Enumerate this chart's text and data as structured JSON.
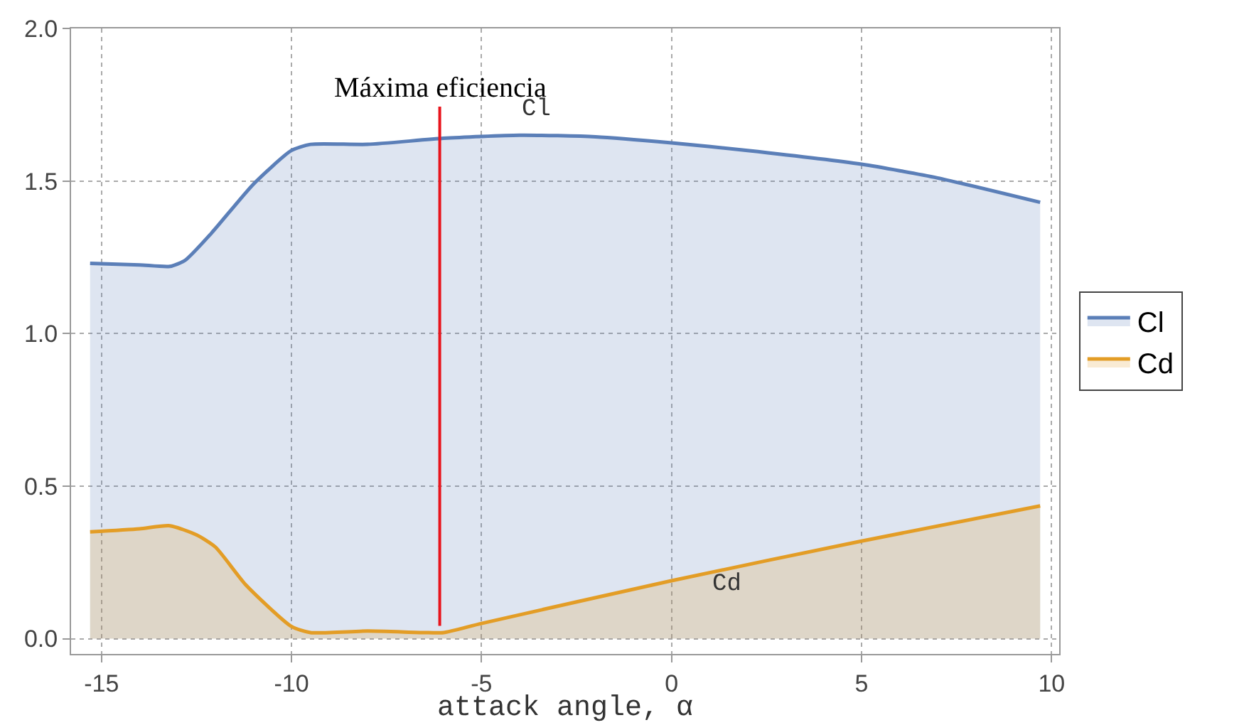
{
  "chart_data": {
    "type": "area",
    "xlabel": "attack angle, α",
    "xlim": [
      -15.8,
      10.2
    ],
    "xticks": [
      -15,
      -10,
      -5,
      0,
      5,
      10
    ],
    "ylim": [
      -0.05,
      2.0
    ],
    "yticks": [
      {
        "value": 0,
        "label": "0.0"
      },
      0.5,
      {
        "value": 1,
        "label": "1.0"
      },
      1.5,
      {
        "value": 2,
        "label": "2.0"
      }
    ],
    "grid": true,
    "legend": "right",
    "line_style": "solid",
    "marker": "none",
    "series": [
      {
        "name": "Cl",
        "color": "#5b7fb8",
        "x": [
          -15.3,
          -14,
          -13.2,
          -12.8,
          -12.1,
          -11,
          -10,
          -9.5,
          -8,
          -6,
          -4,
          -2,
          0,
          2,
          5,
          7,
          9.7
        ],
        "values": [
          1.23,
          1.225,
          1.22,
          1.24,
          1.33,
          1.49,
          1.6,
          1.62,
          1.62,
          1.64,
          1.65,
          1.645,
          1.625,
          1.6,
          1.555,
          1.51,
          1.43
        ]
      },
      {
        "name": "Cd",
        "color": "#e39d26",
        "x": [
          -15.3,
          -14,
          -13.2,
          -12.5,
          -12,
          -11.2,
          -10,
          -9.5,
          -8,
          -6.5,
          -6,
          -5,
          0,
          5,
          9.7
        ],
        "values": [
          0.35,
          0.36,
          0.37,
          0.34,
          0.3,
          0.176,
          0.04,
          0.02,
          0.025,
          0.02,
          0.02,
          0.05,
          0.19,
          0.32,
          0.435
        ]
      }
    ],
    "ref_lines": [
      {
        "axis": "x",
        "value": -6.1,
        "label": "Máxima eficiencia",
        "color": "#e8141c"
      }
    ],
    "annotations": [
      "Cl",
      "Cd"
    ]
  }
}
